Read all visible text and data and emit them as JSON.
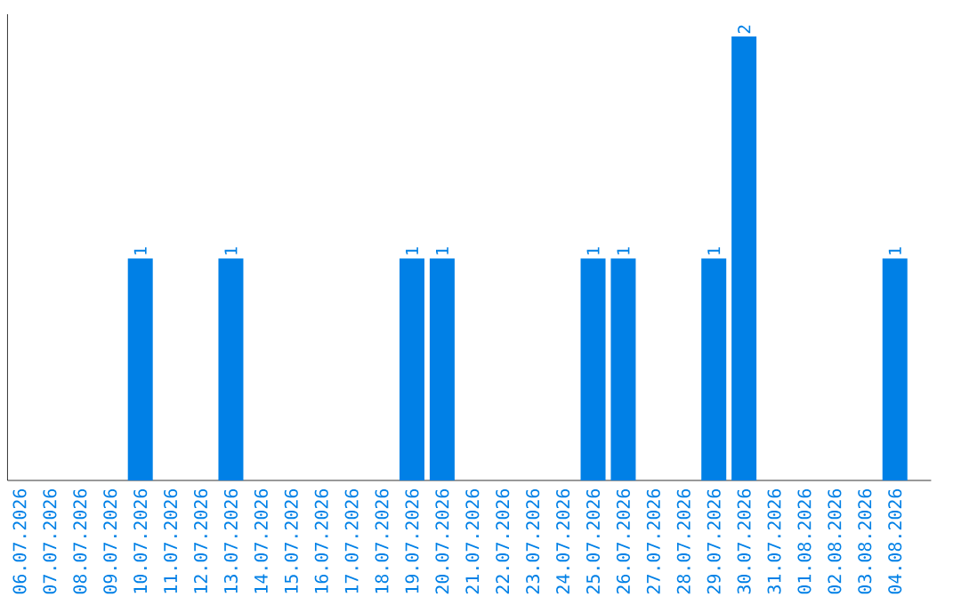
{
  "chart_data": {
    "type": "bar",
    "categories": [
      "06.07.2026",
      "07.07.2026",
      "08.07.2026",
      "09.07.2026",
      "10.07.2026",
      "11.07.2026",
      "12.07.2026",
      "13.07.2026",
      "14.07.2026",
      "15.07.2026",
      "16.07.2026",
      "17.07.2026",
      "18.07.2026",
      "19.07.2026",
      "20.07.2026",
      "21.07.2026",
      "22.07.2026",
      "23.07.2026",
      "24.07.2026",
      "25.07.2026",
      "26.07.2026",
      "27.07.2026",
      "28.07.2026",
      "29.07.2026",
      "30.07.2026",
      "31.07.2026",
      "01.08.2026",
      "02.08.2026",
      "03.08.2026",
      "04.08.2026"
    ],
    "values": [
      0,
      0,
      0,
      0,
      1,
      0,
      0,
      1,
      0,
      0,
      0,
      0,
      0,
      1,
      1,
      0,
      0,
      0,
      0,
      1,
      1,
      0,
      0,
      1,
      2,
      0,
      0,
      0,
      0,
      1
    ],
    "color": "#0080e6",
    "ylim": [
      0,
      2.1
    ],
    "value_labels": [
      null,
      null,
      null,
      null,
      "1",
      null,
      null,
      "1",
      null,
      null,
      null,
      null,
      null,
      "1",
      "1",
      null,
      null,
      null,
      null,
      "1",
      "1",
      null,
      null,
      "1",
      "2",
      null,
      null,
      null,
      null,
      "1"
    ],
    "tick_labels": "x"
  }
}
